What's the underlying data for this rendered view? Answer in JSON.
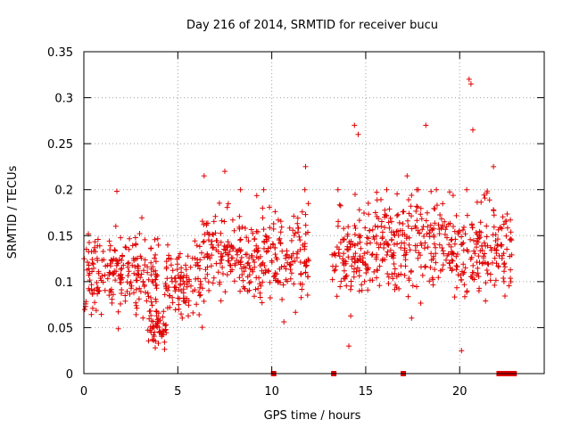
{
  "chart_data": {
    "type": "scatter",
    "title": "Day 216 of 2014, SRMTID for receiver bucu",
    "xlabel": "GPS time / hours",
    "ylabel": "SRMTID / TECUs",
    "xlim": [
      0,
      24.5
    ],
    "ylim": [
      0,
      0.35
    ],
    "xticks": [
      0,
      5,
      10,
      15,
      20
    ],
    "xtick_labels": [
      "0",
      "5",
      "10",
      "15",
      "20"
    ],
    "yticks": [
      0,
      0.05,
      0.1,
      0.15,
      0.2,
      0.25,
      0.3,
      0.35
    ],
    "ytick_labels": [
      "0",
      "0.05",
      "0.1",
      "0.15",
      "0.2",
      "0.25",
      "0.3",
      "0.35"
    ],
    "grid": true,
    "marker": "+",
    "color": "#e00000",
    "segments": [
      {
        "x_start": 0.0,
        "x_end": 4.0,
        "y_center": 0.11,
        "y_spread": 0.04
      },
      {
        "x_start": 3.4,
        "x_end": 4.4,
        "y_center": 0.05,
        "y_spread": 0.02
      },
      {
        "x_start": 4.3,
        "x_end": 6.3,
        "y_center": 0.095,
        "y_spread": 0.035
      },
      {
        "x_start": 6.3,
        "x_end": 8.5,
        "y_center": 0.13,
        "y_spread": 0.04
      },
      {
        "x_start": 8.5,
        "x_end": 12.0,
        "y_center": 0.125,
        "y_spread": 0.045
      },
      {
        "x_start": 13.2,
        "x_end": 16.0,
        "y_center": 0.135,
        "y_spread": 0.05
      },
      {
        "x_start": 16.0,
        "x_end": 19.5,
        "y_center": 0.14,
        "y_spread": 0.05
      },
      {
        "x_start": 19.5,
        "x_end": 22.8,
        "y_center": 0.13,
        "y_spread": 0.05
      }
    ],
    "highlight_points": [
      {
        "x": 6.4,
        "y": 0.215
      },
      {
        "x": 7.5,
        "y": 0.22
      },
      {
        "x": 11.8,
        "y": 0.225
      },
      {
        "x": 14.4,
        "y": 0.27
      },
      {
        "x": 14.6,
        "y": 0.26
      },
      {
        "x": 17.2,
        "y": 0.215
      },
      {
        "x": 18.2,
        "y": 0.27
      },
      {
        "x": 20.5,
        "y": 0.32
      },
      {
        "x": 20.6,
        "y": 0.315
      },
      {
        "x": 20.7,
        "y": 0.265
      },
      {
        "x": 21.8,
        "y": 0.225
      },
      {
        "x": 14.1,
        "y": 0.03
      },
      {
        "x": 20.1,
        "y": 0.025
      },
      {
        "x": 3.8,
        "y": 0.028
      }
    ],
    "zero_markers_x": [
      10.1,
      13.3,
      17.0,
      22.1,
      22.3,
      22.5,
      22.7,
      22.9
    ]
  }
}
